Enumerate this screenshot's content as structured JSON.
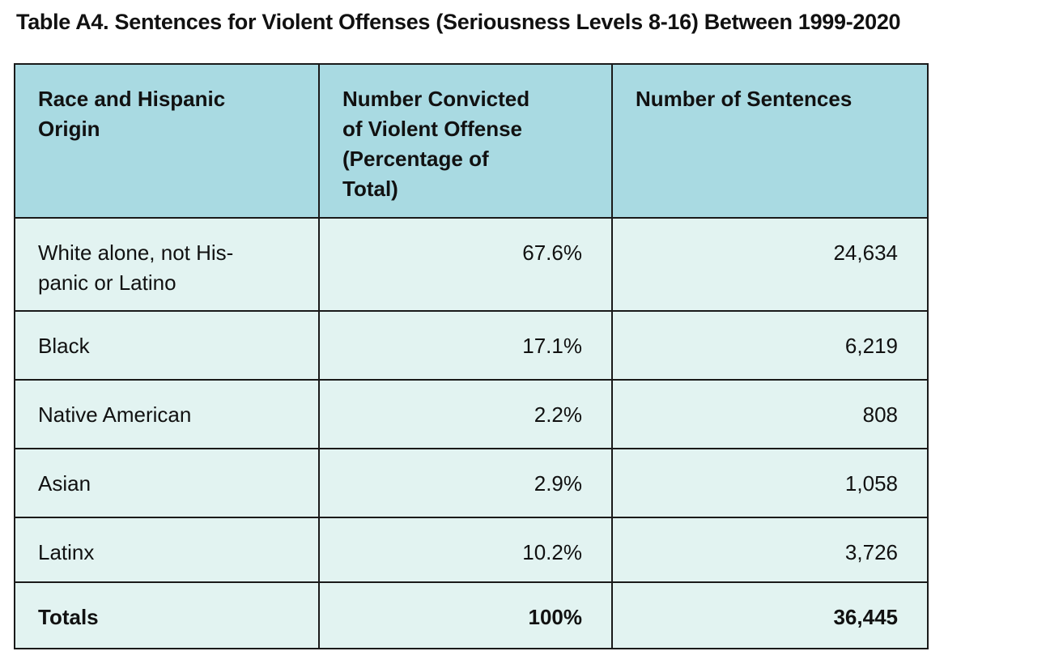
{
  "page": {
    "title": "Table A4. Sentences for Violent Offenses (Seriousness Levels 8-16) Between 1999-2020"
  },
  "table": {
    "columns": [
      "Race and Hispanic\nOrigin",
      "Number Convicted\nof Violent Offense\n(Percentage of\nTotal)",
      "Number of Sentences"
    ],
    "rows": [
      {
        "race": "White alone, not His-\npanic or Latino",
        "pct": "67.6%",
        "count": "24,634"
      },
      {
        "race": "Black",
        "pct": "17.1%",
        "count": "6,219"
      },
      {
        "race": "Native American",
        "pct": "2.2%",
        "count": "808"
      },
      {
        "race": "Asian",
        "pct": "2.9%",
        "count": "1,058"
      },
      {
        "race": "Latinx",
        "pct": "10.2%",
        "count": "3,726"
      },
      {
        "race": "Totals",
        "pct": "100%",
        "count": "36,445"
      }
    ]
  },
  "colors": {
    "header_bg": "#a9dae2",
    "row_bg": "#e2f3f1",
    "border": "#1a1a1a",
    "text": "#111111"
  }
}
